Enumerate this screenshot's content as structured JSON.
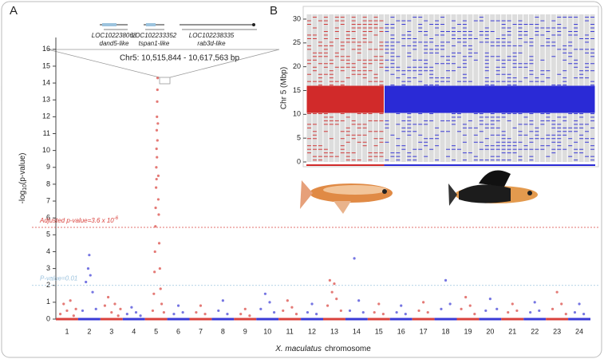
{
  "chart_data": [
    {
      "type": "scatter",
      "panel": "A",
      "ylabel": {
        "prefix": "-log",
        "sub": "10",
        "suffix": "(p-value)"
      },
      "xlabel": [
        "X. maculatus",
        "chromosome"
      ],
      "xlim": [
        0.5,
        24.5
      ],
      "xticks": [
        1,
        2,
        3,
        4,
        5,
        6,
        7,
        8,
        9,
        10,
        11,
        12,
        13,
        14,
        15,
        16,
        17,
        18,
        19,
        20,
        21,
        22,
        23,
        24
      ],
      "ylim": [
        0,
        16.7
      ],
      "yticks": [
        0,
        1,
        2,
        3,
        4,
        5,
        6,
        7,
        8,
        9,
        10,
        11,
        12,
        13,
        14,
        15,
        16
      ],
      "series": [
        {
          "color": "#d9413c",
          "x": [
            0.7,
            0.85,
            1.0,
            1.15,
            1.3,
            1.4,
            2.7,
            2.85,
            3.0,
            3.15,
            3.3,
            3.4,
            4.85,
            4.9,
            4.93,
            4.95,
            4.97,
            4.98,
            5.0,
            5.01,
            5.02,
            5.03,
            5.04,
            5.05,
            5.06,
            5.07,
            5.08,
            5.1,
            5.12,
            5.14,
            5.17,
            5.2,
            5.25,
            5.35,
            5.06,
            5.04,
            5.02,
            5.1,
            6.8,
            7.0,
            7.2,
            8.8,
            9.0,
            9.2,
            10.7,
            10.9,
            11.1,
            11.3,
            12.7,
            12.8,
            12.9,
            13.0,
            13.1,
            13.3,
            14.8,
            15.0,
            15.2,
            16.8,
            17.0,
            17.2,
            18.7,
            18.9,
            19.1,
            19.3,
            20.8,
            21.0,
            21.2,
            22.8,
            23.0,
            23.2,
            23.4
          ],
          "values": [
            0.3,
            0.9,
            0.5,
            1.1,
            0.2,
            0.6,
            0.8,
            1.3,
            0.4,
            0.9,
            0.2,
            0.6,
            0.5,
            1.5,
            2.8,
            4.0,
            5.5,
            6.6,
            7.8,
            9.0,
            10.1,
            11.2,
            12.0,
            12.9,
            13.6,
            14.3,
            11.6,
            8.5,
            6.2,
            4.5,
            3.0,
            1.8,
            0.9,
            0.4,
            10.6,
            9.6,
            8.3,
            7.1,
            0.4,
            0.8,
            0.3,
            0.3,
            0.6,
            0.2,
            0.5,
            1.1,
            0.7,
            0.3,
            0.8,
            2.3,
            1.6,
            2.1,
            1.2,
            0.5,
            0.4,
            0.9,
            0.3,
            0.5,
            1.0,
            0.4,
            0.6,
            1.3,
            0.8,
            0.3,
            0.4,
            0.9,
            0.5,
            0.6,
            1.6,
            0.9,
            0.3
          ]
        },
        {
          "color": "#3a3ad6",
          "x": [
            1.7,
            1.85,
            1.95,
            2.0,
            2.05,
            2.15,
            2.3,
            3.7,
            3.9,
            4.1,
            4.3,
            5.8,
            6.0,
            6.2,
            7.8,
            8.0,
            8.2,
            9.7,
            9.9,
            10.1,
            10.3,
            11.8,
            12.0,
            12.2,
            13.7,
            13.9,
            14.1,
            14.3,
            15.8,
            16.0,
            16.2,
            17.8,
            18.0,
            18.2,
            19.8,
            20.0,
            20.3,
            21.8,
            22.0,
            22.2,
            23.8,
            24.0,
            24.2
          ],
          "values": [
            0.5,
            2.2,
            3.0,
            3.8,
            2.6,
            1.6,
            0.6,
            0.3,
            0.7,
            0.4,
            0.2,
            0.3,
            0.8,
            0.4,
            0.5,
            1.1,
            0.3,
            0.6,
            1.5,
            1.0,
            0.4,
            0.4,
            0.9,
            0.3,
            0.5,
            3.6,
            1.1,
            0.4,
            0.4,
            0.8,
            0.3,
            0.6,
            2.3,
            0.9,
            0.5,
            1.2,
            0.6,
            0.4,
            1.0,
            0.5,
            0.4,
            0.9,
            0.3
          ]
        }
      ],
      "thresholds": [
        {
          "label": "Adjusted p-value=3.6 x 10",
          "exponent": "-6",
          "value": 5.44,
          "color": "#d9413c"
        },
        {
          "label": "P-value=0.01",
          "value": 2,
          "color": "#9cc3de"
        }
      ],
      "inset": {
        "region": "Chr5: 10,515,844 - 10,617,563 bp",
        "genes": [
          {
            "id": "LOC102238068",
            "name": "dand5-like"
          },
          {
            "id": "LOC102233352",
            "name": "tspan1-like"
          },
          {
            "id": "LOC102238335",
            "name": "rab3d-like"
          }
        ]
      }
    },
    {
      "type": "genotype",
      "panel": "B",
      "ylabel": "Chr 5 (Mbp)",
      "ylim": [
        0,
        31
      ],
      "yticks": [
        0,
        5,
        10,
        15,
        20,
        25,
        30
      ],
      "block": [
        10.3,
        16
      ],
      "groups": [
        {
          "color": "#d12a2a",
          "columns": 14
        },
        {
          "color": "#2a2ad6",
          "columns": 38
        }
      ]
    }
  ]
}
